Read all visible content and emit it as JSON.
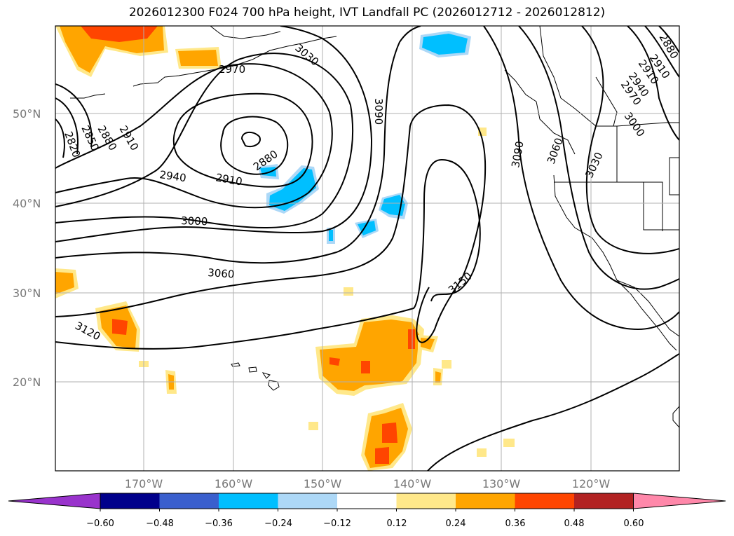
{
  "title": "2026012300 F024 700 hPa height, IVT Landfall PC (2026012712 - 2026012812)",
  "lat_labels": [
    "50°N",
    "40°N",
    "30°N",
    "20°N"
  ],
  "lon_labels": [
    "170°W",
    "160°W",
    "150°W",
    "140°W",
    "130°W",
    "120°W"
  ],
  "contour_labels": [
    "2820",
    "2850",
    "2880",
    "2910",
    "2880",
    "2910",
    "2940",
    "3000",
    "3060",
    "3120",
    "3150",
    "3090",
    "3090",
    "3060",
    "3030",
    "3030",
    "2970",
    "2910",
    "2880",
    "2940",
    "2910",
    "2970",
    "3000"
  ],
  "colorbar": {
    "ticks": [
      "−0.60",
      "−0.48",
      "−0.36",
      "−0.24",
      "−0.12",
      "0.12",
      "0.24",
      "0.36",
      "0.48",
      "0.60"
    ],
    "colors": [
      "#9933cc",
      "#00008b",
      "#3a5fcd",
      "#00bfff",
      "#add8f7",
      "#ffffff",
      "#ffe88a",
      "#ffa500",
      "#ff4500",
      "#b22222",
      "#ff88aa"
    ]
  }
}
